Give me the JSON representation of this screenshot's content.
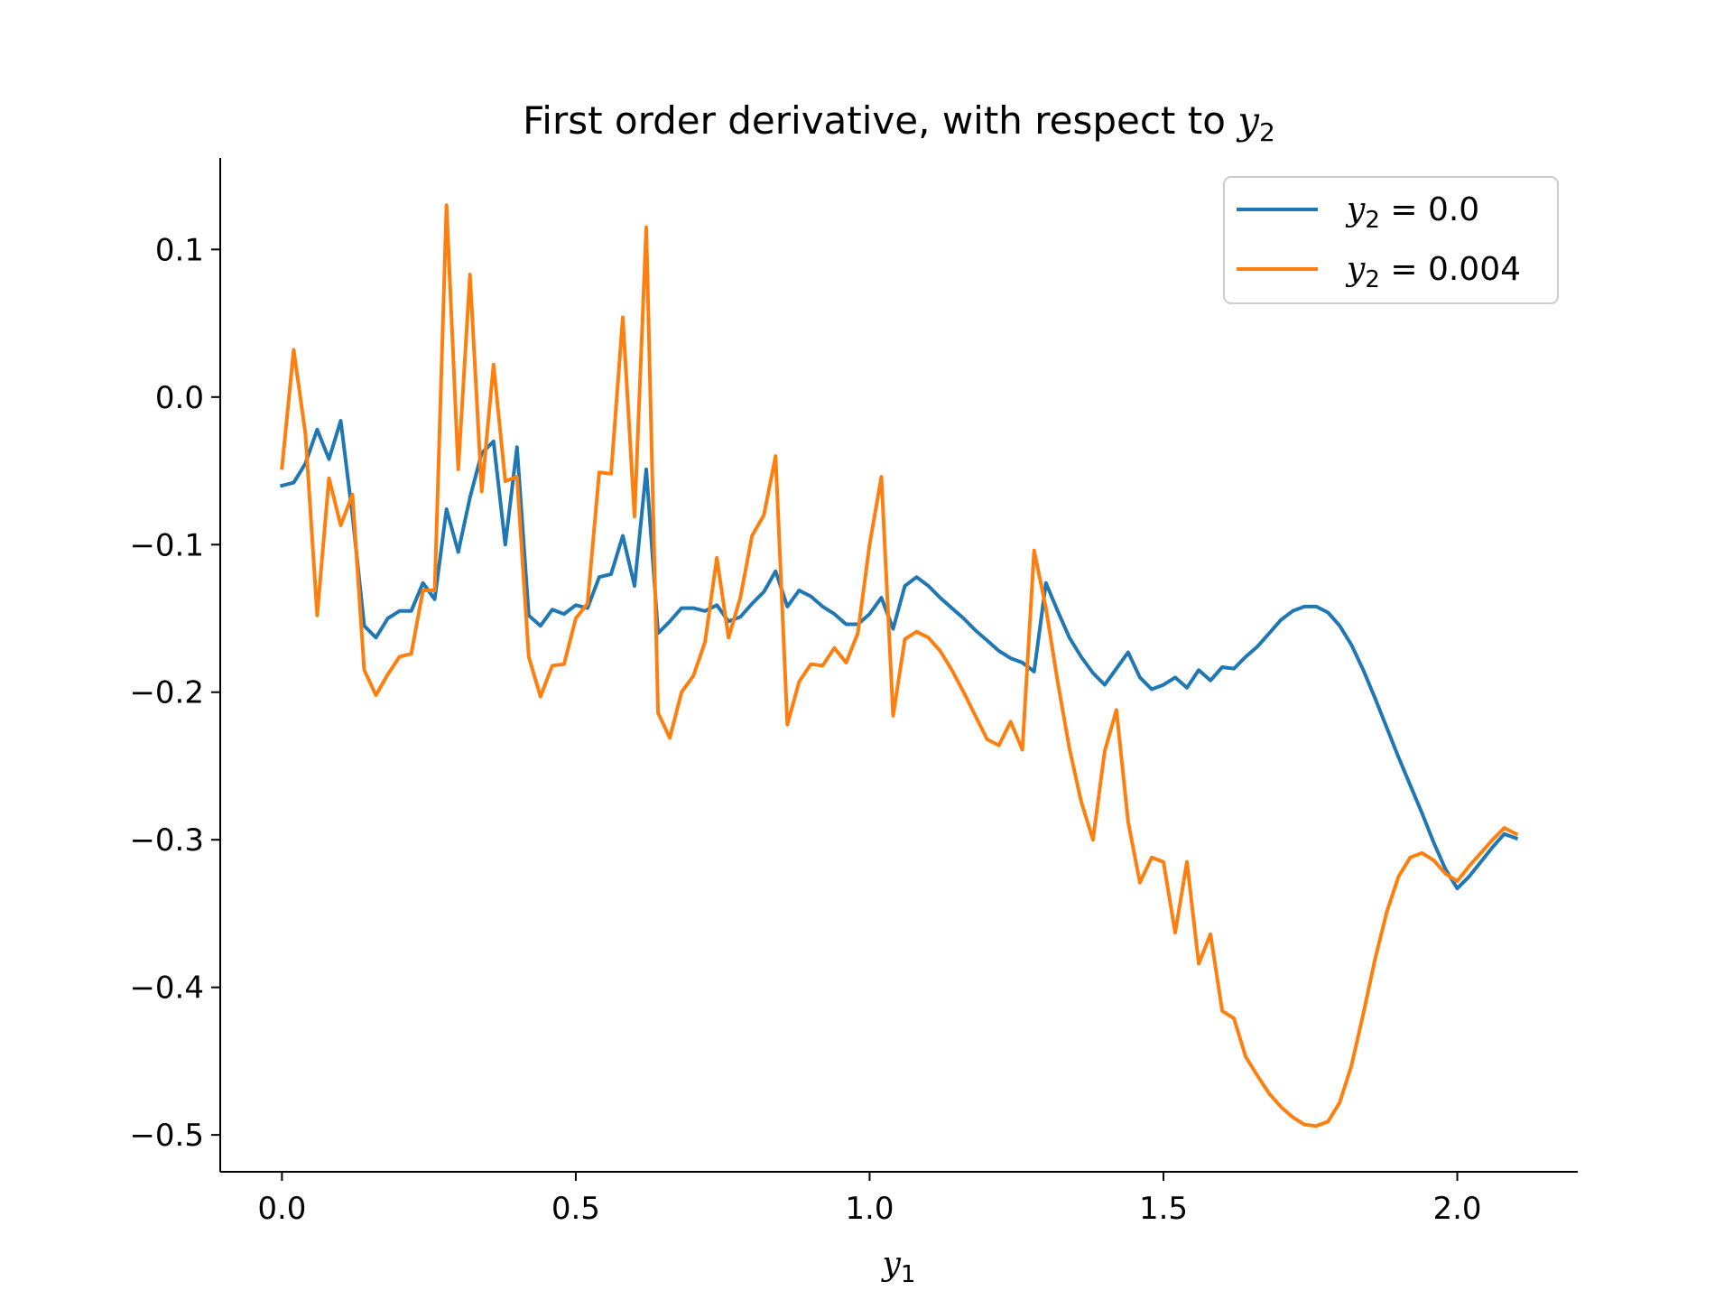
{
  "chart_data": {
    "type": "line",
    "title": "First order derivative, with respect to y₂",
    "title_main": "First order derivative, with respect to ",
    "title_var": "y",
    "title_sub": "2",
    "xlabel_var": "y",
    "xlabel_sub": "1",
    "xlim": [
      -0.105,
      2.205
    ],
    "ylim": [
      -0.525,
      0.162
    ],
    "xticks": [
      0.0,
      0.5,
      1.0,
      1.5,
      2.0
    ],
    "xtick_labels": [
      "0.0",
      "0.5",
      "1.0",
      "1.5",
      "2.0"
    ],
    "yticks": [
      0.1,
      0.0,
      -0.1,
      -0.2,
      -0.3,
      -0.4,
      -0.5
    ],
    "ytick_labels": [
      "0.1",
      "0.0",
      "−0.1",
      "−0.2",
      "−0.3",
      "−0.4",
      "−0.5"
    ],
    "grid": false,
    "legend_position": "top-right",
    "series": [
      {
        "name": "y₂ = 0.0",
        "legend_var": "y",
        "legend_sub": "2",
        "legend_rest": " = 0.0",
        "color": "#1f77b4",
        "x": [
          0.0,
          0.02,
          0.04,
          0.06,
          0.08,
          0.1,
          0.12,
          0.14,
          0.16,
          0.18,
          0.2,
          0.22,
          0.24,
          0.26,
          0.28,
          0.3,
          0.32,
          0.34,
          0.36,
          0.38,
          0.4,
          0.42,
          0.44,
          0.46,
          0.48,
          0.5,
          0.52,
          0.54,
          0.56,
          0.58,
          0.6,
          0.62,
          0.64,
          0.66,
          0.68,
          0.7,
          0.72,
          0.74,
          0.76,
          0.78,
          0.8,
          0.82,
          0.84,
          0.86,
          0.88,
          0.9,
          0.92,
          0.94,
          0.96,
          0.98,
          1.0,
          1.02,
          1.04,
          1.06,
          1.08,
          1.1,
          1.12,
          1.14,
          1.16,
          1.18,
          1.2,
          1.22,
          1.24,
          1.26,
          1.28,
          1.3,
          1.32,
          1.34,
          1.36,
          1.38,
          1.4,
          1.42,
          1.44,
          1.46,
          1.48,
          1.5,
          1.52,
          1.54,
          1.56,
          1.58,
          1.6,
          1.62,
          1.64,
          1.66,
          1.68,
          1.7,
          1.72,
          1.74,
          1.76,
          1.78,
          1.8,
          1.82,
          1.84,
          1.86,
          1.88,
          1.9,
          1.92,
          1.94,
          1.96,
          1.98,
          2.0,
          2.02,
          2.04,
          2.06,
          2.08,
          2.1
        ],
        "y": [
          -0.06,
          -0.058,
          -0.045,
          -0.022,
          -0.042,
          -0.016,
          -0.08,
          -0.155,
          -0.163,
          -0.15,
          -0.145,
          -0.145,
          -0.126,
          -0.137,
          -0.076,
          -0.105,
          -0.068,
          -0.038,
          -0.03,
          -0.1,
          -0.034,
          -0.148,
          -0.155,
          -0.144,
          -0.147,
          -0.141,
          -0.143,
          -0.122,
          -0.12,
          -0.094,
          -0.128,
          -0.049,
          -0.16,
          -0.152,
          -0.143,
          -0.143,
          -0.145,
          -0.141,
          -0.152,
          -0.149,
          -0.14,
          -0.132,
          -0.118,
          -0.142,
          -0.131,
          -0.135,
          -0.142,
          -0.147,
          -0.154,
          -0.154,
          -0.147,
          -0.136,
          -0.157,
          -0.128,
          -0.122,
          -0.128,
          -0.136,
          -0.143,
          -0.15,
          -0.158,
          -0.165,
          -0.172,
          -0.177,
          -0.18,
          -0.186,
          -0.126,
          -0.145,
          -0.163,
          -0.176,
          -0.187,
          -0.195,
          -0.184,
          -0.173,
          -0.19,
          -0.198,
          -0.195,
          -0.19,
          -0.197,
          -0.185,
          -0.192,
          -0.183,
          -0.184,
          -0.176,
          -0.169,
          -0.16,
          -0.151,
          -0.145,
          -0.142,
          -0.142,
          -0.146,
          -0.155,
          -0.168,
          -0.185,
          -0.204,
          -0.224,
          -0.244,
          -0.263,
          -0.282,
          -0.302,
          -0.32,
          -0.333,
          -0.325,
          -0.315,
          -0.305,
          -0.296,
          -0.299
        ]
      },
      {
        "name": "y₂ = 0.004",
        "legend_var": "y",
        "legend_sub": "2",
        "legend_rest": " = 0.004",
        "color": "#ff7f0e",
        "x": [
          0.0,
          0.02,
          0.04,
          0.06,
          0.08,
          0.1,
          0.12,
          0.14,
          0.16,
          0.18,
          0.2,
          0.22,
          0.24,
          0.26,
          0.28,
          0.3,
          0.32,
          0.34,
          0.36,
          0.38,
          0.4,
          0.42,
          0.44,
          0.46,
          0.48,
          0.5,
          0.52,
          0.54,
          0.56,
          0.58,
          0.6,
          0.62,
          0.64,
          0.66,
          0.68,
          0.7,
          0.72,
          0.74,
          0.76,
          0.78,
          0.8,
          0.82,
          0.84,
          0.86,
          0.88,
          0.9,
          0.92,
          0.94,
          0.96,
          0.98,
          1.0,
          1.02,
          1.04,
          1.06,
          1.08,
          1.1,
          1.12,
          1.14,
          1.16,
          1.18,
          1.2,
          1.22,
          1.24,
          1.26,
          1.28,
          1.3,
          1.32,
          1.34,
          1.36,
          1.38,
          1.4,
          1.42,
          1.44,
          1.46,
          1.48,
          1.5,
          1.52,
          1.54,
          1.56,
          1.58,
          1.6,
          1.62,
          1.64,
          1.66,
          1.68,
          1.7,
          1.72,
          1.74,
          1.76,
          1.78,
          1.8,
          1.82,
          1.84,
          1.86,
          1.88,
          1.9,
          1.92,
          1.94,
          1.96,
          1.98,
          2.0,
          2.02,
          2.04,
          2.06,
          2.08,
          2.1
        ],
        "y": [
          -0.048,
          0.032,
          -0.025,
          -0.148,
          -0.055,
          -0.087,
          -0.066,
          -0.185,
          -0.202,
          -0.188,
          -0.176,
          -0.174,
          -0.131,
          -0.131,
          0.13,
          -0.049,
          0.083,
          -0.064,
          0.022,
          -0.057,
          -0.054,
          -0.176,
          -0.203,
          -0.182,
          -0.181,
          -0.15,
          -0.14,
          -0.051,
          -0.052,
          0.054,
          -0.081,
          0.115,
          -0.214,
          -0.231,
          -0.2,
          -0.189,
          -0.166,
          -0.109,
          -0.163,
          -0.136,
          -0.094,
          -0.08,
          -0.04,
          -0.222,
          -0.193,
          -0.181,
          -0.182,
          -0.17,
          -0.18,
          -0.16,
          -0.1,
          -0.054,
          -0.216,
          -0.164,
          -0.159,
          -0.163,
          -0.172,
          -0.185,
          -0.2,
          -0.216,
          -0.232,
          -0.236,
          -0.22,
          -0.239,
          -0.104,
          -0.143,
          -0.193,
          -0.238,
          -0.274,
          -0.3,
          -0.24,
          -0.212,
          -0.288,
          -0.329,
          -0.312,
          -0.315,
          -0.363,
          -0.315,
          -0.384,
          -0.364,
          -0.416,
          -0.421,
          -0.447,
          -0.46,
          -0.472,
          -0.481,
          -0.488,
          -0.493,
          -0.494,
          -0.491,
          -0.478,
          -0.453,
          -0.418,
          -0.381,
          -0.349,
          -0.325,
          -0.312,
          -0.309,
          -0.314,
          -0.323,
          -0.328,
          -0.318,
          -0.309,
          -0.3,
          -0.292,
          -0.296
        ]
      }
    ]
  }
}
